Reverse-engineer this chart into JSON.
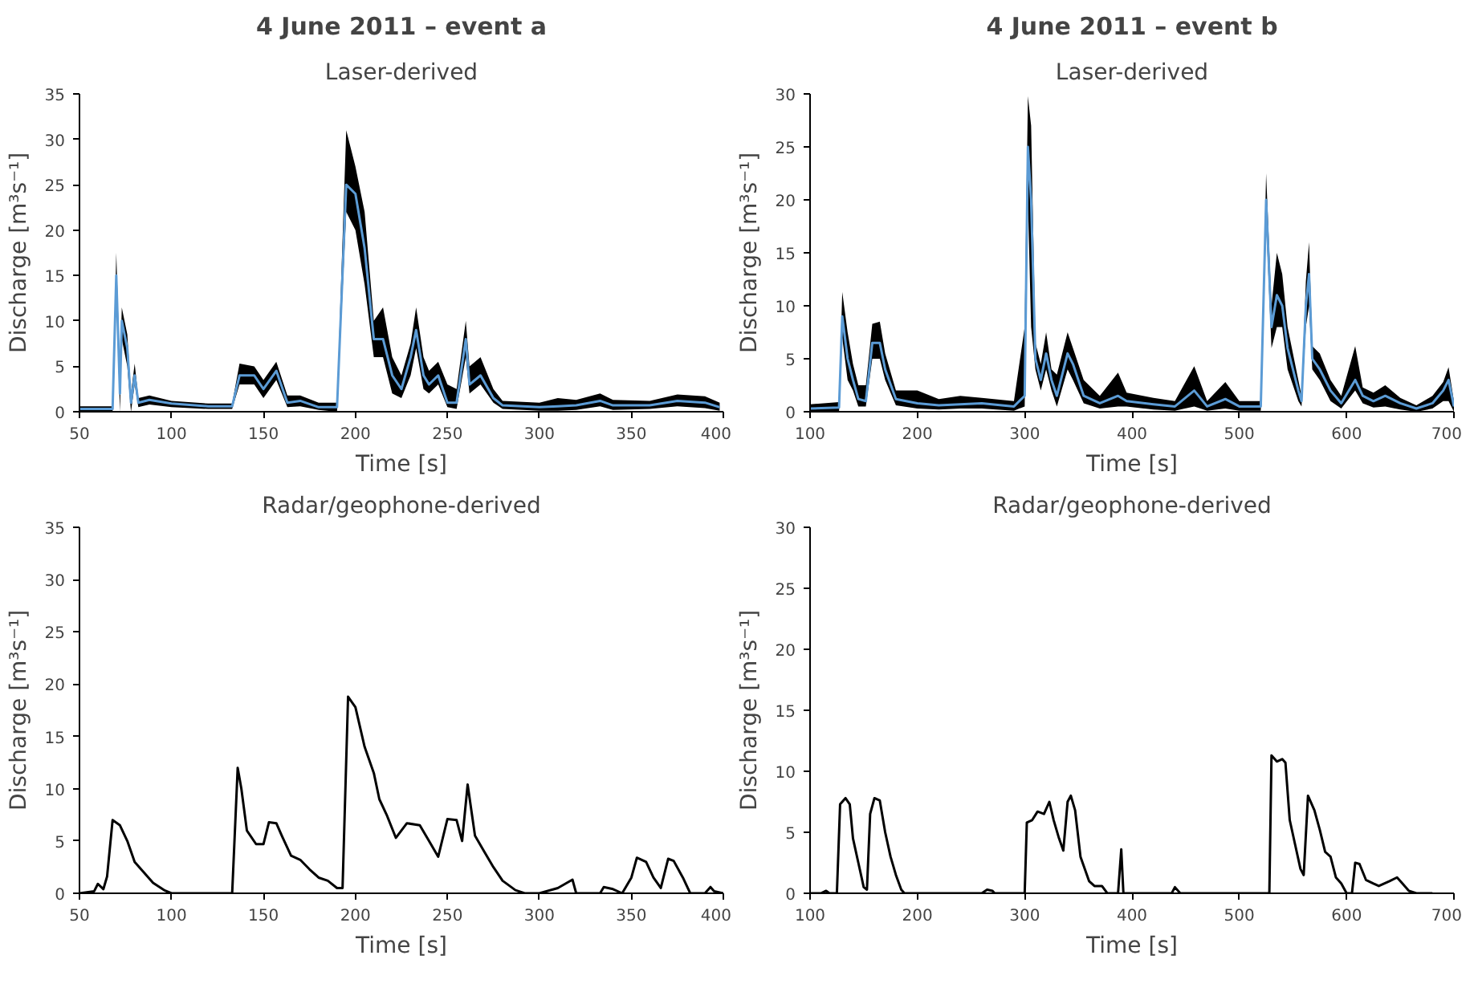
{
  "chart_data": [
    {
      "type": "line",
      "title": "4 June 2011 – event a",
      "subtitle": "Laser-derived",
      "xlabel": "Time [s]",
      "ylabel": "Discharge [m³s⁻¹]",
      "xlim": [
        50,
        400
      ],
      "xticks": [
        50,
        100,
        150,
        200,
        250,
        300,
        350,
        400
      ],
      "ylim": [
        0,
        35
      ],
      "yticks": [
        0,
        5,
        10,
        15,
        20,
        25,
        30,
        35
      ],
      "grid": false,
      "x": [
        50,
        68,
        70,
        72,
        73,
        76,
        78,
        80,
        82,
        88,
        100,
        120,
        133,
        137,
        145,
        150,
        157,
        163,
        170,
        180,
        190,
        195,
        200,
        205,
        210,
        215,
        220,
        225,
        230,
        233,
        237,
        240,
        245,
        250,
        255,
        260,
        262,
        268,
        275,
        280,
        300,
        310,
        320,
        333,
        340,
        360,
        375,
        390,
        398
      ],
      "series": [
        {
          "color": "#5b9bd5",
          "values": [
            0.3,
            0.3,
            15,
            2,
            10,
            7,
            1,
            4,
            1,
            1.3,
            0.9,
            0.6,
            0.6,
            4,
            4,
            2.5,
            4.5,
            1,
            1.2,
            0.5,
            0.5,
            25,
            24,
            18,
            8,
            8,
            4,
            2.5,
            6,
            9,
            4,
            3,
            4,
            1,
            1,
            8,
            3,
            4,
            1.5,
            0.7,
            0.5,
            0.6,
            0.7,
            1.2,
            0.7,
            0.7,
            1.2,
            1,
            0.5
          ],
          "lower": [
            0,
            0,
            13,
            0,
            8,
            5,
            0,
            3,
            0.5,
            0.8,
            0.5,
            0.3,
            0.3,
            3,
            3,
            1.5,
            3.5,
            0.5,
            0.6,
            0.2,
            0,
            22,
            20,
            14,
            6,
            6,
            2,
            1.5,
            4,
            7,
            2.5,
            2,
            3,
            0.5,
            0.3,
            6,
            2,
            3,
            1,
            0.3,
            0.1,
            0.1,
            0.2,
            0.6,
            0.2,
            0.3,
            0.6,
            0.4,
            0.1
          ],
          "upper": [
            0.6,
            0.6,
            17.5,
            4,
            11.5,
            8.5,
            2,
            5.3,
            1.5,
            1.8,
            1.2,
            0.9,
            0.9,
            5.3,
            5,
            3.5,
            5.5,
            1.8,
            1.8,
            1,
            1,
            31,
            27,
            22,
            10,
            11.5,
            6,
            4,
            7.5,
            11.5,
            6,
            4.5,
            5.5,
            3,
            2.5,
            10,
            5,
            6,
            2.5,
            1.2,
            1,
            1.5,
            1.3,
            2,
            1.3,
            1.2,
            1.9,
            1.7,
            1
          ]
        }
      ]
    },
    {
      "type": "line",
      "title": "4 June 2011 – event b",
      "subtitle": "Laser-derived",
      "xlabel": "Time [s]",
      "ylabel": "Discharge [m³s⁻¹]",
      "xlim": [
        100,
        700
      ],
      "xticks": [
        100,
        200,
        300,
        400,
        500,
        600,
        700
      ],
      "ylim": [
        0,
        30
      ],
      "yticks": [
        0,
        5,
        10,
        15,
        20,
        25,
        30
      ],
      "grid": false,
      "x": [
        100,
        127,
        130,
        135,
        140,
        145,
        152,
        158,
        165,
        170,
        180,
        200,
        220,
        240,
        260,
        290,
        300,
        303,
        306,
        310,
        315,
        320,
        325,
        330,
        340,
        345,
        355,
        370,
        387,
        395,
        420,
        440,
        458,
        470,
        487,
        500,
        520,
        525,
        530,
        535,
        540,
        545,
        555,
        558,
        562,
        565,
        568,
        575,
        585,
        595,
        608,
        615,
        625,
        636,
        650,
        665,
        680,
        690,
        695,
        700
      ],
      "series": [
        {
          "color": "#5b9bd5",
          "values": [
            0.3,
            0.4,
            9,
            5,
            3,
            1.2,
            1,
            6.5,
            6.5,
            4,
            1.2,
            0.8,
            0.6,
            0.7,
            0.8,
            0.5,
            1.5,
            25,
            20,
            5,
            3,
            5.5,
            3,
            1.5,
            5.5,
            4.5,
            1.5,
            0.8,
            1.5,
            1,
            0.7,
            0.5,
            2,
            0.5,
            1.2,
            0.5,
            0.5,
            20,
            8,
            11,
            10,
            6,
            2,
            1,
            10,
            13,
            5,
            4,
            2,
            0.8,
            3,
            1.5,
            1,
            1.5,
            0.8,
            0.3,
            0.8,
            2,
            3,
            0.5
          ],
          "lower": [
            0,
            0,
            7,
            3,
            2,
            0.5,
            0.5,
            5,
            5,
            3,
            0.6,
            0.3,
            0.2,
            0.3,
            0.3,
            0.1,
            0.5,
            20,
            8,
            4,
            2,
            4,
            2,
            0.5,
            4,
            3,
            0.8,
            0.3,
            0.5,
            0.5,
            0.2,
            0.1,
            0.5,
            0.1,
            0.3,
            0.1,
            0.1,
            18,
            6,
            8,
            8,
            4,
            1,
            0.5,
            8,
            10,
            4,
            3,
            1,
            0.3,
            2,
            0.8,
            0.4,
            0.5,
            0.2,
            0,
            0.3,
            1,
            1,
            0
          ],
          "upper": [
            0.7,
            0.9,
            11.3,
            7.5,
            4.5,
            2.5,
            2.5,
            8.3,
            8.5,
            5.5,
            2,
            2,
            1.2,
            1.5,
            1.3,
            1,
            8,
            29.8,
            27,
            6.5,
            4.5,
            7.5,
            4,
            3.5,
            7.5,
            6,
            3,
            1.5,
            3.7,
            1.8,
            1.3,
            1,
            4.3,
            1,
            2.8,
            1,
            1,
            22.5,
            10,
            15,
            13,
            8,
            3,
            1.5,
            12.3,
            16,
            6.2,
            5.5,
            3,
            1.5,
            6.2,
            2.3,
            1.8,
            2.5,
            1.3,
            0.6,
            1.5,
            2.8,
            4.2,
            1
          ]
        }
      ]
    },
    {
      "type": "line",
      "title": "Radar/geophone-derived",
      "xlabel": "Time [s]",
      "ylabel": "Discharge [m³s⁻¹]",
      "xlim": [
        50,
        400
      ],
      "xticks": [
        50,
        100,
        150,
        200,
        250,
        300,
        350,
        400
      ],
      "ylim": [
        0,
        35
      ],
      "yticks": [
        0,
        5,
        10,
        15,
        20,
        25,
        30,
        35
      ],
      "grid": false,
      "x": [
        50,
        58,
        60,
        63,
        65,
        68,
        72,
        76,
        80,
        85,
        90,
        96,
        100,
        133,
        136,
        138,
        141,
        146,
        150,
        153,
        157,
        160,
        165,
        170,
        175,
        180,
        185,
        190,
        193,
        196,
        200,
        205,
        210,
        213,
        217,
        222,
        228,
        235,
        240,
        245,
        250,
        255,
        258,
        261,
        265,
        270,
        275,
        280,
        287,
        292,
        300,
        310,
        318,
        320,
        333,
        335,
        340,
        345,
        350,
        353,
        358,
        362,
        366,
        370,
        373,
        378,
        382,
        390,
        393,
        395,
        400
      ],
      "series": [
        {
          "color": "#000000",
          "values": [
            0,
            0.2,
            0.9,
            0.4,
            1.6,
            7,
            6.5,
            5,
            3,
            2,
            1,
            0.3,
            0,
            0,
            12,
            10,
            6,
            4.7,
            4.7,
            6.8,
            6.7,
            5.5,
            3.6,
            3.2,
            2.3,
            1.5,
            1.2,
            0.5,
            0.5,
            18.8,
            17.8,
            14,
            11.5,
            9,
            7.5,
            5.3,
            6.7,
            6.5,
            5,
            3.5,
            7.1,
            7,
            5,
            10.4,
            5.5,
            4,
            2.5,
            1.2,
            0.3,
            0,
            0,
            0.5,
            1.3,
            0,
            0,
            0.6,
            0.4,
            0,
            1.5,
            3.4,
            3,
            1.5,
            0.5,
            3.3,
            3.1,
            1.5,
            0,
            0,
            0.6,
            0.2,
            0
          ]
        }
      ]
    },
    {
      "type": "line",
      "title": "Radar/geophone-derived",
      "xlabel": "Time [s]",
      "ylabel": "Discharge [m³s⁻¹]",
      "xlim": [
        100,
        700
      ],
      "xticks": [
        100,
        200,
        300,
        400,
        500,
        600,
        700
      ],
      "ylim": [
        0,
        30
      ],
      "yticks": [
        0,
        5,
        10,
        15,
        20,
        25,
        30
      ],
      "grid": false,
      "x": [
        100,
        110,
        115,
        118,
        125,
        128,
        133,
        137,
        140,
        145,
        150,
        153,
        156,
        160,
        165,
        170,
        175,
        180,
        185,
        188,
        260,
        265,
        270,
        272,
        300,
        302,
        307,
        312,
        318,
        323,
        327,
        332,
        336,
        340,
        343,
        347,
        352,
        360,
        365,
        372,
        377,
        387,
        390,
        392,
        437,
        440,
        445,
        528,
        530,
        535,
        540,
        543,
        547,
        552,
        557,
        560,
        564,
        570,
        575,
        580,
        585,
        590,
        595,
        600,
        605,
        608,
        612,
        618,
        625,
        630,
        640,
        647,
        652,
        658,
        665,
        680
      ],
      "series": [
        {
          "color": "#000000",
          "values": [
            0,
            0,
            0.2,
            0,
            0,
            7.3,
            7.8,
            7.3,
            4.5,
            2.5,
            0.5,
            0.3,
            6.5,
            7.8,
            7.6,
            5,
            3,
            1.5,
            0.3,
            0,
            0,
            0.3,
            0.2,
            0,
            0,
            5.8,
            6,
            6.7,
            6.5,
            7.5,
            6,
            4.5,
            3.5,
            7.5,
            8,
            6.8,
            3,
            1,
            0.6,
            0.6,
            0,
            0,
            3.6,
            0,
            0,
            0.5,
            0,
            0,
            11.3,
            10.8,
            11,
            10.7,
            6,
            4,
            2,
            1.5,
            8,
            6.8,
            5.2,
            3.4,
            3,
            1.3,
            0.8,
            0,
            0,
            2.5,
            2.4,
            1.1,
            0.8,
            0.6,
            1,
            1.3,
            0.8,
            0.2,
            0,
            0
          ]
        }
      ]
    }
  ]
}
